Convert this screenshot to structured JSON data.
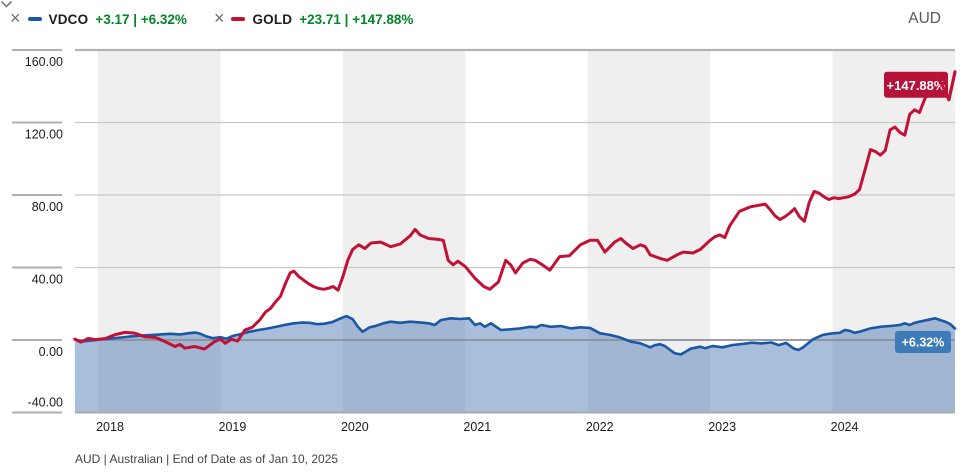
{
  "header": {
    "remove_icon": "×",
    "legend": [
      {
        "name": "VDCO",
        "change": "+3.17",
        "change_pct": "+6.32%",
        "display": "+3.17 | +6.32%",
        "color": "#1a57a5"
      },
      {
        "name": "GOLD",
        "change": "+23.71",
        "change_pct": "+147.88%",
        "display": "+23.71 | +147.88%",
        "color": "#c11236"
      }
    ],
    "currency": {
      "value": "AUD"
    }
  },
  "footer": {
    "source_line": "AUD | Australian | End of Date as of Jan 10, 2025"
  },
  "colors": {
    "positive_green": "#008726",
    "band_gray": "#efefef",
    "grid_light": "#c8c8c8",
    "grid_top": "#b3b3b3",
    "grid_zero": "#8a9096",
    "grid_bottom": "#ababab",
    "tick_gray": "#b0b0b0",
    "axis_text": "#1c1c1c",
    "vdco_line": "#1a57a5",
    "vdco_fill": "rgba(90,130,185,0.52)",
    "vdco_badge_bg": "#3d7ab8",
    "gold_line": "#c11236",
    "gold_badge_bg": "#b5123a",
    "badge_text": "#ffffff"
  },
  "chart_data": {
    "type": "line",
    "title": "Cumulative return (%) of VDCO vs GOLD in AUD, late 2017 through Jan 10, 2025",
    "x_range": [
      2017.812,
      2025.0
    ],
    "x_ticks": [
      2018,
      2019,
      2020,
      2021,
      2022,
      2023,
      2024
    ],
    "y_range": [
      -40,
      160
    ],
    "y_ticks": [
      160,
      120,
      80,
      40,
      0,
      -40
    ],
    "y_tick_labels": [
      "160.00",
      "120.00",
      "80.00",
      "40.00",
      "0.00",
      "-40.00"
    ],
    "shaded_years": [
      2018,
      2020,
      2022,
      2024
    ],
    "grid": true,
    "legend_position": "top-left",
    "series": [
      {
        "name": "VDCO",
        "end_label": "+6.32%",
        "area": true,
        "points": [
          [
            2017.81,
            0.3
          ],
          [
            2017.87,
            -0.8
          ],
          [
            2017.95,
            -0.2
          ],
          [
            2018.03,
            0.4
          ],
          [
            2018.11,
            0.9
          ],
          [
            2018.19,
            1.4
          ],
          [
            2018.27,
            2.0
          ],
          [
            2018.35,
            2.4
          ],
          [
            2018.43,
            2.7
          ],
          [
            2018.51,
            3.1
          ],
          [
            2018.59,
            3.4
          ],
          [
            2018.67,
            3.1
          ],
          [
            2018.75,
            3.8
          ],
          [
            2018.8,
            4.1
          ],
          [
            2018.84,
            3.3
          ],
          [
            2018.88,
            2.1
          ],
          [
            2018.94,
            1.0
          ],
          [
            2019.0,
            1.6
          ],
          [
            2019.05,
            0.7
          ],
          [
            2019.1,
            2.2
          ],
          [
            2019.16,
            3.2
          ],
          [
            2019.22,
            4.3
          ],
          [
            2019.3,
            5.4
          ],
          [
            2019.38,
            6.3
          ],
          [
            2019.46,
            7.4
          ],
          [
            2019.53,
            8.4
          ],
          [
            2019.6,
            9.2
          ],
          [
            2019.67,
            9.6
          ],
          [
            2019.73,
            9.5
          ],
          [
            2019.79,
            8.7
          ],
          [
            2019.85,
            9.0
          ],
          [
            2019.91,
            9.8
          ],
          [
            2019.97,
            11.6
          ],
          [
            2020.03,
            13.2
          ],
          [
            2020.08,
            11.5
          ],
          [
            2020.12,
            7.5
          ],
          [
            2020.16,
            4.6
          ],
          [
            2020.22,
            7.0
          ],
          [
            2020.27,
            7.8
          ],
          [
            2020.33,
            9.2
          ],
          [
            2020.39,
            10.1
          ],
          [
            2020.47,
            9.5
          ],
          [
            2020.55,
            10.1
          ],
          [
            2020.63,
            9.7
          ],
          [
            2020.7,
            9.2
          ],
          [
            2020.75,
            8.3
          ],
          [
            2020.8,
            11.0
          ],
          [
            2020.88,
            12.0
          ],
          [
            2020.96,
            11.6
          ],
          [
            2021.03,
            12.0
          ],
          [
            2021.08,
            8.3
          ],
          [
            2021.12,
            9.2
          ],
          [
            2021.16,
            7.3
          ],
          [
            2021.21,
            9.2
          ],
          [
            2021.29,
            5.5
          ],
          [
            2021.37,
            5.9
          ],
          [
            2021.45,
            6.4
          ],
          [
            2021.53,
            7.3
          ],
          [
            2021.58,
            7.0
          ],
          [
            2021.62,
            8.3
          ],
          [
            2021.7,
            7.3
          ],
          [
            2021.78,
            7.7
          ],
          [
            2021.86,
            6.4
          ],
          [
            2021.94,
            7.0
          ],
          [
            2022.02,
            6.6
          ],
          [
            2022.1,
            3.7
          ],
          [
            2022.18,
            2.8
          ],
          [
            2022.26,
            1.5
          ],
          [
            2022.35,
            -0.9
          ],
          [
            2022.43,
            -1.8
          ],
          [
            2022.51,
            -4.0
          ],
          [
            2022.55,
            -2.8
          ],
          [
            2022.59,
            -2.3
          ],
          [
            2022.63,
            -3.3
          ],
          [
            2022.71,
            -7.3
          ],
          [
            2022.76,
            -8.0
          ],
          [
            2022.84,
            -4.8
          ],
          [
            2022.92,
            -3.7
          ],
          [
            2022.96,
            -4.6
          ],
          [
            2023.02,
            -3.3
          ],
          [
            2023.1,
            -4.0
          ],
          [
            2023.18,
            -2.8
          ],
          [
            2023.26,
            -2.2
          ],
          [
            2023.34,
            -1.5
          ],
          [
            2023.42,
            -1.9
          ],
          [
            2023.5,
            -1.4
          ],
          [
            2023.56,
            -2.8
          ],
          [
            2023.62,
            -1.6
          ],
          [
            2023.68,
            -4.6
          ],
          [
            2023.72,
            -5.5
          ],
          [
            2023.76,
            -4.0
          ],
          [
            2023.84,
            0.4
          ],
          [
            2023.92,
            2.8
          ],
          [
            2024.0,
            3.7
          ],
          [
            2024.06,
            4.0
          ],
          [
            2024.1,
            5.5
          ],
          [
            2024.14,
            5.1
          ],
          [
            2024.18,
            4.0
          ],
          [
            2024.22,
            4.6
          ],
          [
            2024.31,
            6.4
          ],
          [
            2024.39,
            7.3
          ],
          [
            2024.47,
            7.7
          ],
          [
            2024.55,
            8.3
          ],
          [
            2024.59,
            9.2
          ],
          [
            2024.63,
            8.3
          ],
          [
            2024.67,
            9.5
          ],
          [
            2024.71,
            10.1
          ],
          [
            2024.8,
            11.4
          ],
          [
            2024.84,
            12.0
          ],
          [
            2024.88,
            11.0
          ],
          [
            2024.92,
            10.1
          ],
          [
            2024.96,
            8.8
          ],
          [
            2025.0,
            6.32
          ]
        ]
      },
      {
        "name": "GOLD",
        "end_label": "+147.88%",
        "area": false,
        "points": [
          [
            2017.81,
            0.5
          ],
          [
            2017.86,
            -1.2
          ],
          [
            2017.92,
            0.8
          ],
          [
            2017.98,
            0.2
          ],
          [
            2018.06,
            0.8
          ],
          [
            2018.14,
            3.0
          ],
          [
            2018.22,
            4.2
          ],
          [
            2018.3,
            3.8
          ],
          [
            2018.38,
            1.8
          ],
          [
            2018.47,
            1.4
          ],
          [
            2018.55,
            -1.0
          ],
          [
            2018.63,
            -3.6
          ],
          [
            2018.67,
            -2.4
          ],
          [
            2018.71,
            -4.5
          ],
          [
            2018.79,
            -3.6
          ],
          [
            2018.87,
            -5.0
          ],
          [
            2018.95,
            -1.0
          ],
          [
            2019.0,
            0.5
          ],
          [
            2019.04,
            -1.8
          ],
          [
            2019.09,
            0.4
          ],
          [
            2019.14,
            -0.6
          ],
          [
            2019.2,
            5.5
          ],
          [
            2019.26,
            7.0
          ],
          [
            2019.32,
            11.0
          ],
          [
            2019.37,
            15.5
          ],
          [
            2019.41,
            17.5
          ],
          [
            2019.45,
            21.0
          ],
          [
            2019.49,
            24.0
          ],
          [
            2019.53,
            31.0
          ],
          [
            2019.57,
            37.0
          ],
          [
            2019.6,
            38.0
          ],
          [
            2019.64,
            35.0
          ],
          [
            2019.68,
            33.0
          ],
          [
            2019.72,
            31.0
          ],
          [
            2019.76,
            29.5
          ],
          [
            2019.8,
            28.5
          ],
          [
            2019.84,
            28.0
          ],
          [
            2019.88,
            28.5
          ],
          [
            2019.92,
            29.5
          ],
          [
            2019.96,
            27.5
          ],
          [
            2020.0,
            35.0
          ],
          [
            2020.04,
            44.0
          ],
          [
            2020.08,
            50.0
          ],
          [
            2020.13,
            52.5
          ],
          [
            2020.18,
            50.5
          ],
          [
            2020.23,
            53.5
          ],
          [
            2020.31,
            54.0
          ],
          [
            2020.39,
            51.5
          ],
          [
            2020.47,
            53.0
          ],
          [
            2020.55,
            57.5
          ],
          [
            2020.59,
            61.0
          ],
          [
            2020.63,
            58.0
          ],
          [
            2020.7,
            56.0
          ],
          [
            2020.78,
            55.5
          ],
          [
            2020.82,
            55.0
          ],
          [
            2020.86,
            44.0
          ],
          [
            2020.9,
            41.5
          ],
          [
            2020.94,
            43.5
          ],
          [
            2021.0,
            40.5
          ],
          [
            2021.08,
            34.0
          ],
          [
            2021.15,
            29.5
          ],
          [
            2021.2,
            28.0
          ],
          [
            2021.27,
            32.0
          ],
          [
            2021.33,
            44.0
          ],
          [
            2021.37,
            41.5
          ],
          [
            2021.41,
            37.0
          ],
          [
            2021.47,
            42.5
          ],
          [
            2021.53,
            44.5
          ],
          [
            2021.57,
            44.0
          ],
          [
            2021.63,
            41.5
          ],
          [
            2021.69,
            38.5
          ],
          [
            2021.77,
            46.0
          ],
          [
            2021.85,
            46.5
          ],
          [
            2021.94,
            52.5
          ],
          [
            2022.02,
            55.0
          ],
          [
            2022.08,
            55.0
          ],
          [
            2022.14,
            48.5
          ],
          [
            2022.22,
            54.0
          ],
          [
            2022.27,
            56.0
          ],
          [
            2022.31,
            53.5
          ],
          [
            2022.37,
            50.5
          ],
          [
            2022.43,
            52.5
          ],
          [
            2022.47,
            51.5
          ],
          [
            2022.51,
            47.0
          ],
          [
            2022.59,
            45.0
          ],
          [
            2022.65,
            44.0
          ],
          [
            2022.73,
            47.0
          ],
          [
            2022.78,
            48.5
          ],
          [
            2022.86,
            48.0
          ],
          [
            2022.92,
            50.0
          ],
          [
            2023.0,
            55.0
          ],
          [
            2023.04,
            57.0
          ],
          [
            2023.08,
            58.0
          ],
          [
            2023.12,
            56.5
          ],
          [
            2023.16,
            63.0
          ],
          [
            2023.24,
            71.0
          ],
          [
            2023.33,
            73.5
          ],
          [
            2023.41,
            74.5
          ],
          [
            2023.45,
            75.0
          ],
          [
            2023.49,
            72.0
          ],
          [
            2023.53,
            68.5
          ],
          [
            2023.57,
            66.5
          ],
          [
            2023.61,
            68.0
          ],
          [
            2023.65,
            70.0
          ],
          [
            2023.69,
            72.5
          ],
          [
            2023.73,
            68.0
          ],
          [
            2023.77,
            65.5
          ],
          [
            2023.81,
            76.0
          ],
          [
            2023.85,
            82.0
          ],
          [
            2023.89,
            81.0
          ],
          [
            2023.93,
            79.0
          ],
          [
            2023.97,
            77.5
          ],
          [
            2024.01,
            78.5
          ],
          [
            2024.05,
            78.0
          ],
          [
            2024.09,
            78.5
          ],
          [
            2024.13,
            79.0
          ],
          [
            2024.18,
            80.5
          ],
          [
            2024.22,
            83.0
          ],
          [
            2024.27,
            95.0
          ],
          [
            2024.31,
            105.0
          ],
          [
            2024.35,
            104.0
          ],
          [
            2024.39,
            102.0
          ],
          [
            2024.43,
            104.5
          ],
          [
            2024.47,
            116.0
          ],
          [
            2024.51,
            117.5
          ],
          [
            2024.55,
            114.5
          ],
          [
            2024.59,
            113.0
          ],
          [
            2024.63,
            124.5
          ],
          [
            2024.67,
            127.0
          ],
          [
            2024.71,
            125.5
          ],
          [
            2024.75,
            132.5
          ],
          [
            2024.8,
            139.0
          ],
          [
            2024.85,
            147.0
          ],
          [
            2024.9,
            140.0
          ],
          [
            2024.95,
            132.5
          ],
          [
            2025.0,
            148.0
          ]
        ]
      }
    ]
  }
}
